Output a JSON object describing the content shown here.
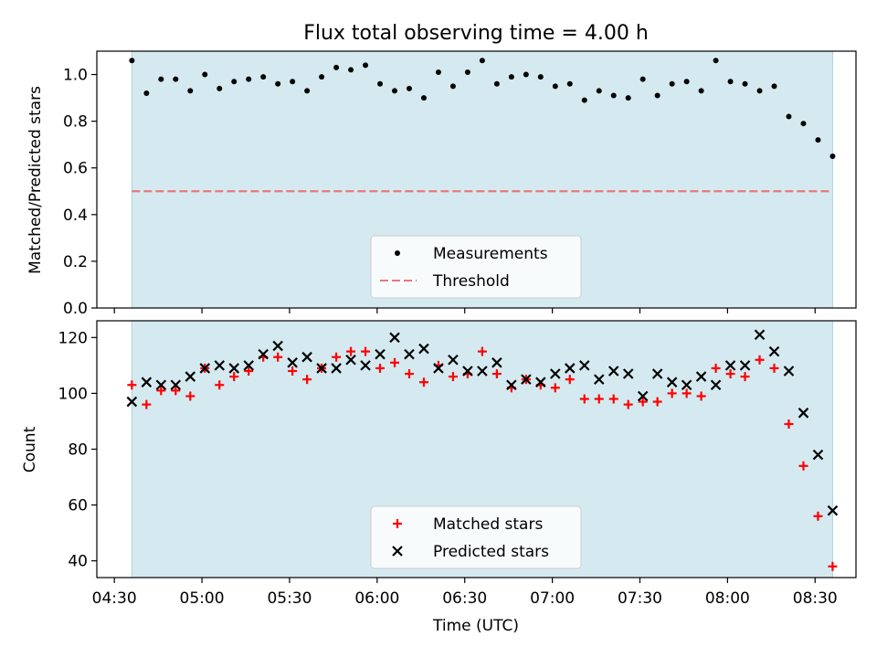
{
  "figure": {
    "title": "Flux total observing time = 4.00 h",
    "shaded_color": "#d5eaf0",
    "shaded_edge_color": "#a9d3dd"
  },
  "chart_data": [
    {
      "type": "scatter",
      "panel": "top",
      "title": "Flux total observing time = 4.00 h",
      "xlabel": "",
      "ylabel": "Matched/Predicted stars",
      "xlim": [
        "04:24",
        "08:44"
      ],
      "ylim": [
        0.0,
        1.1
      ],
      "yticks": [
        0.0,
        0.2,
        0.4,
        0.6,
        0.8,
        1.0
      ],
      "ytick_labels": [
        "0.0",
        "0.2",
        "0.4",
        "0.6",
        "0.8",
        "1.0"
      ],
      "grid": false,
      "legend_position": "bottom-center",
      "shaded_span": [
        "04:36",
        "08:36"
      ],
      "x": [
        "04:36",
        "04:41",
        "04:46",
        "04:51",
        "04:56",
        "05:01",
        "05:06",
        "05:11",
        "05:16",
        "05:21",
        "05:26",
        "05:31",
        "05:36",
        "05:41",
        "05:46",
        "05:51",
        "05:56",
        "06:01",
        "06:06",
        "06:11",
        "06:16",
        "06:21",
        "06:26",
        "06:31",
        "06:36",
        "06:41",
        "06:46",
        "06:51",
        "06:56",
        "07:01",
        "07:06",
        "07:11",
        "07:16",
        "07:21",
        "07:26",
        "07:31",
        "07:36",
        "07:41",
        "07:46",
        "07:51",
        "07:56",
        "08:01",
        "08:06",
        "08:11",
        "08:16",
        "08:21",
        "08:26",
        "08:31",
        "08:36"
      ],
      "series": [
        {
          "name": "Measurements",
          "marker": "dot",
          "color": "#000000",
          "values": [
            1.06,
            0.92,
            0.98,
            0.98,
            0.93,
            1.0,
            0.94,
            0.97,
            0.98,
            0.99,
            0.96,
            0.97,
            0.93,
            0.99,
            1.03,
            1.02,
            1.04,
            0.96,
            0.93,
            0.94,
            0.9,
            1.01,
            0.95,
            1.01,
            1.06,
            0.96,
            0.99,
            1.0,
            0.99,
            0.95,
            0.96,
            0.89,
            0.93,
            0.91,
            0.9,
            0.98,
            0.91,
            0.96,
            0.97,
            0.93,
            1.06,
            0.97,
            0.96,
            0.93,
            0.95,
            0.82,
            0.79,
            0.72,
            0.65
          ]
        },
        {
          "name": "Threshold",
          "style": "dashed-line",
          "color": "#e87878",
          "values": [
            0.5,
            0.5
          ]
        }
      ]
    },
    {
      "type": "scatter",
      "panel": "bottom",
      "xlabel": "Time (UTC)",
      "ylabel": "Count",
      "xlim": [
        "04:24",
        "08:44"
      ],
      "ylim": [
        34,
        126
      ],
      "yticks": [
        40,
        60,
        80,
        100,
        120
      ],
      "ytick_labels": [
        "40",
        "60",
        "80",
        "100",
        "120"
      ],
      "xticks": [
        "04:30",
        "05:00",
        "05:30",
        "06:00",
        "06:30",
        "07:00",
        "07:30",
        "08:00",
        "08:30"
      ],
      "xtick_labels": [
        "04:30",
        "05:00",
        "05:30",
        "06:00",
        "06:30",
        "07:00",
        "07:30",
        "08:00",
        "08:30"
      ],
      "grid": false,
      "legend_position": "bottom-center",
      "shaded_span": [
        "04:36",
        "08:36"
      ],
      "x": [
        "04:36",
        "04:41",
        "04:46",
        "04:51",
        "04:56",
        "05:01",
        "05:06",
        "05:11",
        "05:16",
        "05:21",
        "05:26",
        "05:31",
        "05:36",
        "05:41",
        "05:46",
        "05:51",
        "05:56",
        "06:01",
        "06:06",
        "06:11",
        "06:16",
        "06:21",
        "06:26",
        "06:31",
        "06:36",
        "06:41",
        "06:46",
        "06:51",
        "06:56",
        "07:01",
        "07:06",
        "07:11",
        "07:16",
        "07:21",
        "07:26",
        "07:31",
        "07:36",
        "07:41",
        "07:46",
        "07:51",
        "07:56",
        "08:01",
        "08:06",
        "08:11",
        "08:16",
        "08:21",
        "08:26",
        "08:31",
        "08:36"
      ],
      "series": [
        {
          "name": "Matched stars",
          "marker": "plus",
          "color": "#ff0000",
          "values": [
            103,
            96,
            101,
            101,
            99,
            109,
            103,
            106,
            108,
            113,
            113,
            108,
            105,
            109,
            113,
            115,
            115,
            109,
            111,
            107,
            104,
            110,
            106,
            107,
            115,
            107,
            102,
            105,
            103,
            102,
            105,
            98,
            98,
            98,
            96,
            97,
            97,
            100,
            100,
            99,
            109,
            107,
            106,
            112,
            109,
            89,
            74,
            56,
            38
          ]
        },
        {
          "name": "Predicted stars",
          "marker": "x",
          "color": "#000000",
          "values": [
            97,
            104,
            103,
            103,
            106,
            109,
            110,
            109,
            110,
            114,
            117,
            111,
            113,
            109,
            109,
            112,
            110,
            114,
            120,
            114,
            116,
            109,
            112,
            108,
            108,
            111,
            103,
            105,
            104,
            107,
            109,
            110,
            105,
            108,
            107,
            99,
            107,
            104,
            103,
            106,
            103,
            110,
            110,
            121,
            115,
            108,
            93,
            78,
            58
          ]
        }
      ]
    }
  ]
}
